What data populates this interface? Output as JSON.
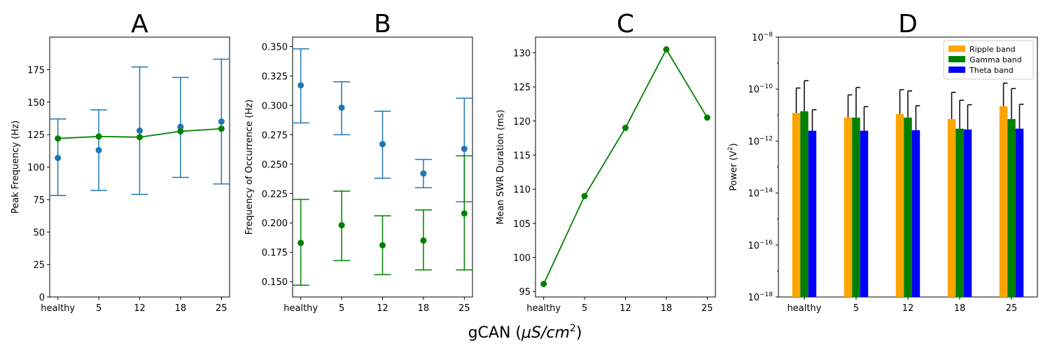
{
  "figure": {
    "xlabel_prefix": "gCAN (",
    "xlabel_math": "μS/cm",
    "xlabel_exp": "2",
    "xlabel_suffix": ")"
  },
  "chart_data": [
    {
      "panel": "A",
      "type": "errorbar-line",
      "title": "A",
      "categories": [
        "healthy",
        "5",
        "12",
        "18",
        "25"
      ],
      "ylabel": "Peak Frequency (Hz)",
      "ylim": [
        0,
        200
      ],
      "yticks": [
        0,
        25,
        50,
        75,
        100,
        125,
        150,
        175
      ],
      "ytick_labels": [
        "0",
        "25",
        "50",
        "75",
        "100",
        "125",
        "150",
        "175"
      ],
      "series": [
        {
          "color": "#1f77b4",
          "style": "errorbar",
          "values": [
            107,
            113,
            128,
            131,
            135
          ],
          "err_low": [
            78,
            82,
            79,
            92,
            87
          ],
          "err_high": [
            137,
            144,
            177,
            169,
            183
          ]
        },
        {
          "color": "#008000",
          "style": "line",
          "values": [
            122,
            123.5,
            123,
            127.5,
            129.5
          ]
        }
      ]
    },
    {
      "panel": "B",
      "type": "errorbar",
      "title": "B",
      "categories": [
        "healthy",
        "5",
        "12",
        "18",
        "25"
      ],
      "ylabel": "Frequency of Occurrence (Hz)",
      "ylim": [
        0.137,
        0.358
      ],
      "yticks": [
        0.15,
        0.175,
        0.2,
        0.225,
        0.25,
        0.275,
        0.3,
        0.325,
        0.35
      ],
      "ytick_labels": [
        "0.150",
        "0.175",
        "0.200",
        "0.225",
        "0.250",
        "0.275",
        "0.300",
        "0.325",
        "0.350"
      ],
      "series": [
        {
          "color": "#1f77b4",
          "style": "errorbar",
          "values": [
            0.317,
            0.298,
            0.267,
            0.242,
            0.263
          ],
          "err_low": [
            0.285,
            0.275,
            0.238,
            0.23,
            0.218
          ],
          "err_high": [
            0.348,
            0.32,
            0.295,
            0.254,
            0.306
          ]
        },
        {
          "color": "#008000",
          "style": "errorbar",
          "values": [
            0.183,
            0.198,
            0.181,
            0.185,
            0.208
          ],
          "err_low": [
            0.147,
            0.168,
            0.156,
            0.16,
            0.16
          ],
          "err_high": [
            0.22,
            0.227,
            0.206,
            0.211,
            0.257
          ]
        }
      ]
    },
    {
      "panel": "C",
      "type": "line",
      "title": "C",
      "categories": [
        "healthy",
        "5",
        "12",
        "18",
        "25"
      ],
      "ylabel": "Mean SWR Duration (ms)",
      "ylim": [
        94.2,
        132.3
      ],
      "yticks": [
        95,
        100,
        105,
        110,
        115,
        120,
        125,
        130
      ],
      "ytick_labels": [
        "95",
        "100",
        "105",
        "110",
        "115",
        "120",
        "125",
        "130"
      ],
      "series": [
        {
          "color": "#008000",
          "style": "line",
          "values": [
            96.1,
            109,
            119,
            130.5,
            120.5
          ]
        }
      ]
    },
    {
      "panel": "D",
      "type": "bar",
      "title": "D",
      "categories": [
        "healthy",
        "5",
        "12",
        "18",
        "25"
      ],
      "ylabel": "Power (V",
      "ylabel_exp": "2",
      "ylabel_suffix": ")",
      "yscale": "log",
      "ylim_exp": [
        -18,
        -8
      ],
      "yticks_exp": [
        -18,
        -16,
        -14,
        -12,
        -10,
        -8
      ],
      "ytick_base": "10",
      "ytick_exp_labels": [
        "−18",
        "−16",
        "−14",
        "−12",
        "−10",
        "−8"
      ],
      "legend_position": "top-right",
      "series": [
        {
          "name": "Ripple band",
          "color": "#ffa500",
          "values": [
            1.2e-11,
            8e-12,
            1.1e-11,
            7e-12,
            2.2e-11
          ],
          "err_high": [
            1.1e-10,
            6e-11,
            9.5e-11,
            7.5e-11,
            1.7e-10
          ]
        },
        {
          "name": "Gamma band",
          "color": "#008000",
          "values": [
            1.4e-11,
            8e-12,
            8e-12,
            3e-12,
            7e-12
          ],
          "err_high": [
            2.1e-10,
            1.15e-10,
            8.5e-11,
            3.7e-11,
            1.05e-10
          ]
        },
        {
          "name": "Theta band",
          "color": "#0000ff",
          "values": [
            2.5e-12,
            2.5e-12,
            2.6e-12,
            2.8e-12,
            3e-12
          ],
          "err_high": [
            1.6e-11,
            2.1e-11,
            2.3e-11,
            2.5e-11,
            2.6e-11
          ]
        }
      ]
    }
  ]
}
